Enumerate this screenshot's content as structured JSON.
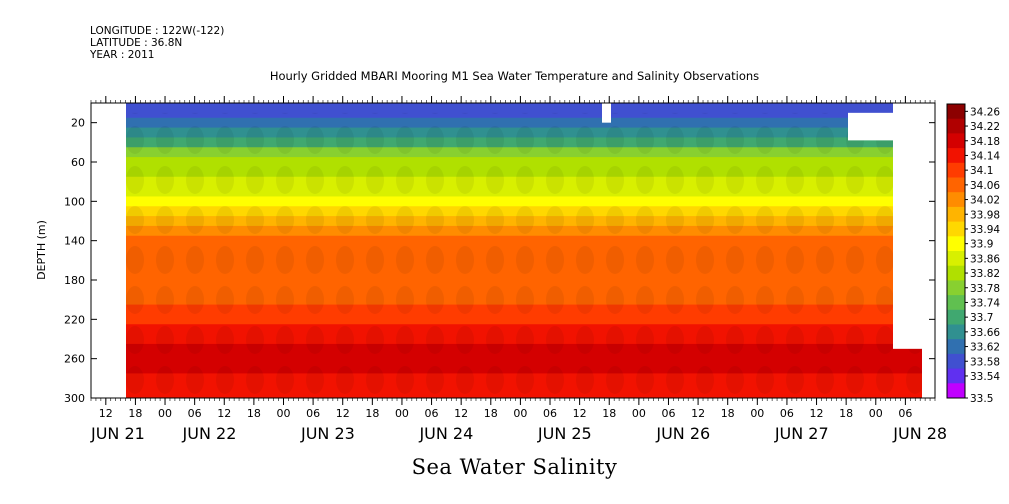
{
  "header": {
    "longitude": "LONGITUDE : 122W(-122)",
    "latitude": "LATITUDE : 36.8N",
    "year": "YEAR : 2011"
  },
  "title": "Hourly Gridded MBARI Mooring M1 Sea Water Temperature and Salinity Observations",
  "footer": "Sea Water Salinity",
  "chart_data": {
    "type": "heatmap",
    "title": "Hourly Gridded MBARI Mooring M1 Sea Water Temperature and Salinity Observations",
    "xlabel": "",
    "ylabel": "DEPTH (m)",
    "y_ticks": [
      20,
      60,
      100,
      140,
      180,
      220,
      260,
      300
    ],
    "ylim": [
      300,
      0
    ],
    "x_hour_ticks": [
      "12",
      "18",
      "00",
      "06",
      "12",
      "18",
      "00",
      "06",
      "12",
      "18",
      "00",
      "06",
      "12",
      "18",
      "00",
      "06",
      "12",
      "18",
      "00",
      "06",
      "12",
      "18",
      "00",
      "06",
      "12",
      "18",
      "00",
      "06"
    ],
    "x_day_labels": [
      "JUN 21",
      "JUN 22",
      "JUN 23",
      "JUN 24",
      "JUN 25",
      "JUN 26",
      "JUN 27",
      "JUN 28"
    ],
    "xlim": [
      "2011-06-21 09:00",
      "2011-06-28 12:00"
    ],
    "colorbar": {
      "levels": [
        34.26,
        34.22,
        34.18,
        34.14,
        34.1,
        34.06,
        34.02,
        33.98,
        33.94,
        33.9,
        33.86,
        33.82,
        33.78,
        33.74,
        33.7,
        33.66,
        33.62,
        33.58,
        33.54,
        33.5
      ],
      "colors": [
        "#8c0000",
        "#b00000",
        "#d40000",
        "#f21200",
        "#ff3c00",
        "#ff6400",
        "#ff8c00",
        "#ffb400",
        "#ffd800",
        "#ffff00",
        "#d8f000",
        "#b0e000",
        "#88d030",
        "#60c050",
        "#40a870",
        "#309090",
        "#3070b0",
        "#4050d0",
        "#6030f0",
        "#c000ff"
      ]
    },
    "profile": [
      {
        "depth": 10,
        "salinity": 33.6
      },
      {
        "depth": 20,
        "salinity": 33.64
      },
      {
        "depth": 30,
        "salinity": 33.7
      },
      {
        "depth": 40,
        "salinity": 33.74
      },
      {
        "depth": 50,
        "salinity": 33.8
      },
      {
        "depth": 60,
        "salinity": 33.84
      },
      {
        "depth": 70,
        "salinity": 33.86
      },
      {
        "depth": 80,
        "salinity": 33.88
      },
      {
        "depth": 90,
        "salinity": 33.9
      },
      {
        "depth": 100,
        "salinity": 33.92
      },
      {
        "depth": 110,
        "salinity": 33.96
      },
      {
        "depth": 120,
        "salinity": 34.02
      },
      {
        "depth": 130,
        "salinity": 34.06
      },
      {
        "depth": 140,
        "salinity": 34.08
      },
      {
        "depth": 150,
        "salinity": 34.1
      },
      {
        "depth": 160,
        "salinity": 34.1
      },
      {
        "depth": 170,
        "salinity": 34.09
      },
      {
        "depth": 180,
        "salinity": 34.09
      },
      {
        "depth": 190,
        "salinity": 34.08
      },
      {
        "depth": 200,
        "salinity": 34.1
      },
      {
        "depth": 210,
        "salinity": 34.12
      },
      {
        "depth": 220,
        "salinity": 34.14
      },
      {
        "depth": 230,
        "salinity": 34.16
      },
      {
        "depth": 240,
        "salinity": 34.18
      },
      {
        "depth": 250,
        "salinity": 34.2
      },
      {
        "depth": 260,
        "salinity": 34.22
      },
      {
        "depth": 270,
        "salinity": 34.2
      },
      {
        "depth": 280,
        "salinity": 34.18
      },
      {
        "depth": 290,
        "salinity": 34.16
      },
      {
        "depth": 300,
        "salinity": 34.16
      }
    ]
  }
}
